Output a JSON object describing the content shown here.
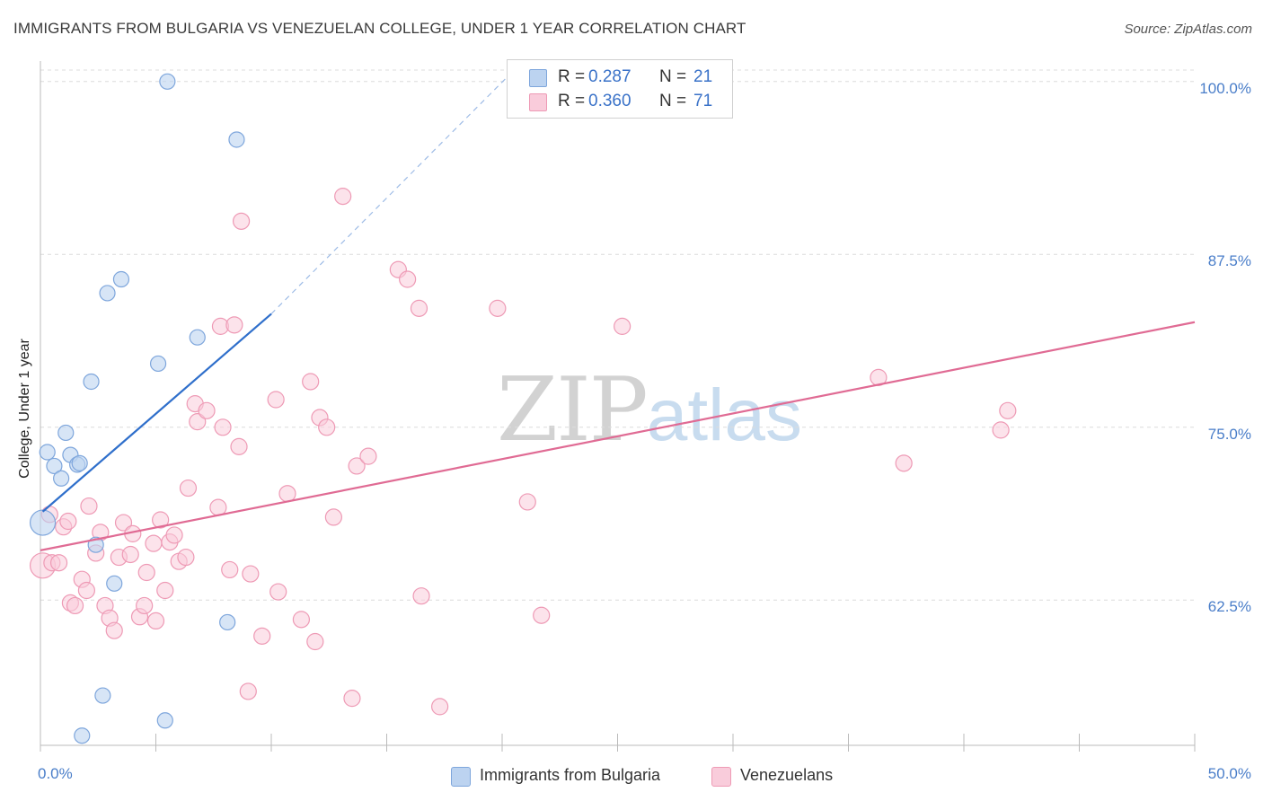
{
  "title": "IMMIGRANTS FROM BULGARIA VS VENEZUELAN COLLEGE, UNDER 1 YEAR CORRELATION CHART",
  "source": "Source: ZipAtlas.com",
  "watermark": {
    "zip": "ZIP",
    "atlas": "atlas"
  },
  "stats": [
    {
      "r_label": "R =",
      "r_value": "0.287",
      "n_label": "N =",
      "n_value": "21",
      "color": "#a9c8ee"
    },
    {
      "r_label": "R =",
      "r_value": "0.360",
      "n_label": "N =",
      "n_value": "71",
      "color": "#f6b9cc"
    }
  ],
  "legend": [
    {
      "label": "Immigrants from Bulgaria",
      "color": "#a9c8ee"
    },
    {
      "label": "Venezuelans",
      "color": "#f6b9cc"
    }
  ],
  "colors": {
    "blue_fill": "#bcd3f0",
    "blue_stroke": "#7ea6dc",
    "blue_line": "#2f6fcb",
    "pink_fill": "#f9ccdb",
    "pink_stroke": "#ee9ab5",
    "pink_line": "#e06b94",
    "grid": "#dcdcdc",
    "axis_label": "#4a7ec9"
  },
  "chart_data": {
    "type": "scatter",
    "title": "IMMIGRANTS FROM BULGARIA VS VENEZUELAN COLLEGE, UNDER 1 YEAR CORRELATION CHART",
    "xlabel": "",
    "ylabel": "College, Under 1 year",
    "xlim": [
      0,
      50
    ],
    "ylim": [
      52,
      102
    ],
    "x_tick_labels": [
      {
        "value": 0,
        "label": "0.0%"
      },
      {
        "value": 50,
        "label": "50.0%"
      }
    ],
    "y_tick_labels": [
      {
        "value": 100,
        "label": "100.0%"
      },
      {
        "value": 87.5,
        "label": "87.5%"
      },
      {
        "value": 75,
        "label": "75.0%"
      },
      {
        "value": 62.5,
        "label": "62.5%"
      }
    ],
    "grid": true,
    "series": [
      {
        "name": "Immigrants from Bulgaria",
        "r": 0.287,
        "n": 21,
        "points": [
          [
            0.1,
            68.1
          ],
          [
            0.3,
            73.2
          ],
          [
            0.6,
            72.2
          ],
          [
            0.9,
            71.3
          ],
          [
            1.1,
            74.6
          ],
          [
            1.3,
            73.0
          ],
          [
            1.6,
            72.3
          ],
          [
            1.7,
            72.4
          ],
          [
            2.2,
            78.3
          ],
          [
            2.4,
            66.5
          ],
          [
            2.9,
            84.7
          ],
          [
            3.2,
            63.7
          ],
          [
            3.5,
            85.7
          ],
          [
            5.1,
            79.6
          ],
          [
            5.4,
            53.8
          ],
          [
            5.5,
            100.0
          ],
          [
            6.8,
            81.5
          ],
          [
            8.1,
            60.9
          ],
          [
            8.5,
            95.8
          ],
          [
            1.8,
            52.7
          ],
          [
            2.7,
            55.6
          ]
        ],
        "trend": {
          "x": [
            0.1,
            10.0
          ],
          "y": [
            68.9,
            83.2
          ],
          "dashed_to": {
            "x": 20.5,
            "y": 100.8
          }
        }
      },
      {
        "name": "Venezuelans",
        "r": 0.36,
        "n": 71,
        "points": [
          [
            0.1,
            65.0
          ],
          [
            0.4,
            68.7
          ],
          [
            0.5,
            65.2
          ],
          [
            0.8,
            65.2
          ],
          [
            1.0,
            67.8
          ],
          [
            1.2,
            68.2
          ],
          [
            1.3,
            62.3
          ],
          [
            1.5,
            62.1
          ],
          [
            1.8,
            64.0
          ],
          [
            2.0,
            63.2
          ],
          [
            2.1,
            69.3
          ],
          [
            2.4,
            65.9
          ],
          [
            2.6,
            67.4
          ],
          [
            2.8,
            62.1
          ],
          [
            3.0,
            61.2
          ],
          [
            3.2,
            60.3
          ],
          [
            3.4,
            65.6
          ],
          [
            3.6,
            68.1
          ],
          [
            3.9,
            65.8
          ],
          [
            4.0,
            67.3
          ],
          [
            4.3,
            61.3
          ],
          [
            4.5,
            62.1
          ],
          [
            4.6,
            64.5
          ],
          [
            4.9,
            66.6
          ],
          [
            5.0,
            61.0
          ],
          [
            5.2,
            68.3
          ],
          [
            5.4,
            63.2
          ],
          [
            5.6,
            66.7
          ],
          [
            5.8,
            67.2
          ],
          [
            6.0,
            65.3
          ],
          [
            6.3,
            65.6
          ],
          [
            6.4,
            70.6
          ],
          [
            6.7,
            76.7
          ],
          [
            6.8,
            75.4
          ],
          [
            7.2,
            76.2
          ],
          [
            7.7,
            69.2
          ],
          [
            7.8,
            82.3
          ],
          [
            7.9,
            75.0
          ],
          [
            8.2,
            64.7
          ],
          [
            8.4,
            82.4
          ],
          [
            8.6,
            73.6
          ],
          [
            8.7,
            89.9
          ],
          [
            9.1,
            64.4
          ],
          [
            9.6,
            59.9
          ],
          [
            10.2,
            77.0
          ],
          [
            10.3,
            63.1
          ],
          [
            10.7,
            70.2
          ],
          [
            11.3,
            61.1
          ],
          [
            11.7,
            78.3
          ],
          [
            11.9,
            59.5
          ],
          [
            12.1,
            75.7
          ],
          [
            12.4,
            75.0
          ],
          [
            12.7,
            68.5
          ],
          [
            13.1,
            91.7
          ],
          [
            13.5,
            55.4
          ],
          [
            13.7,
            72.2
          ],
          [
            14.2,
            72.9
          ],
          [
            15.5,
            86.4
          ],
          [
            15.9,
            85.7
          ],
          [
            16.4,
            83.6
          ],
          [
            16.5,
            62.8
          ],
          [
            17.3,
            54.8
          ],
          [
            19.8,
            83.6
          ],
          [
            21.1,
            69.6
          ],
          [
            21.7,
            61.4
          ],
          [
            25.2,
            82.3
          ],
          [
            36.3,
            78.6
          ],
          [
            37.4,
            72.4
          ],
          [
            41.6,
            74.8
          ],
          [
            41.9,
            76.2
          ],
          [
            9.0,
            55.9
          ]
        ],
        "trend": {
          "x": [
            0,
            50
          ],
          "y": [
            66.1,
            82.6
          ]
        }
      }
    ]
  }
}
